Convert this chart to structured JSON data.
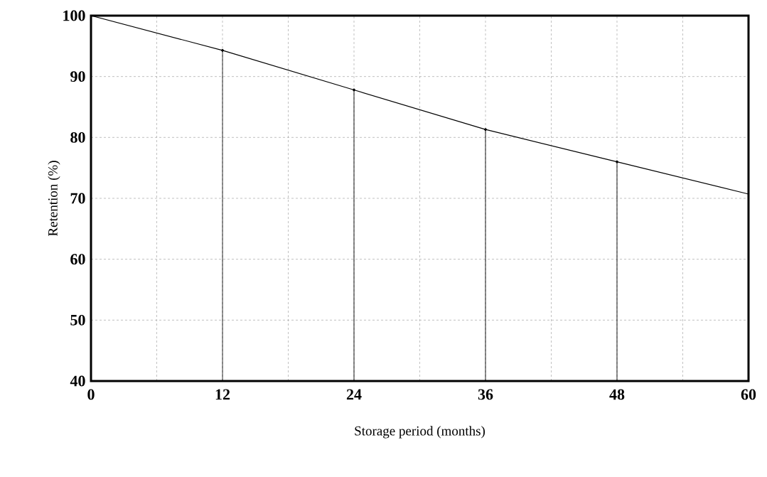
{
  "chart_data": {
    "type": "line",
    "xlabel": "Storage period  (months)",
    "ylabel": "Retention (%)",
    "series": [
      {
        "color": "#000000",
        "x": [
          0,
          12,
          24,
          36,
          48,
          60
        ],
        "values": [
          100,
          94.3,
          87.8,
          81.3,
          76,
          70.7
        ]
      },
      {
        "type": "lollipop",
        "color": "#000000",
        "x": [
          12,
          24,
          36,
          48
        ],
        "values": [
          94.3,
          87.8,
          81.3,
          76
        ]
      }
    ],
    "xlim": [
      0,
      60
    ],
    "ylim": [
      40,
      100
    ],
    "xticks": [
      0,
      {
        "value": 6,
        "label": null
      },
      12,
      {
        "value": 18,
        "label": null
      },
      24,
      {
        "value": 30,
        "label": null
      },
      36,
      {
        "value": 42,
        "label": null
      },
      48,
      {
        "value": 54,
        "label": null
      },
      60
    ],
    "yticks": [
      40,
      50,
      60,
      70,
      80,
      90,
      100
    ],
    "grid": true,
    "marker": "none",
    "line_style": "solid"
  }
}
